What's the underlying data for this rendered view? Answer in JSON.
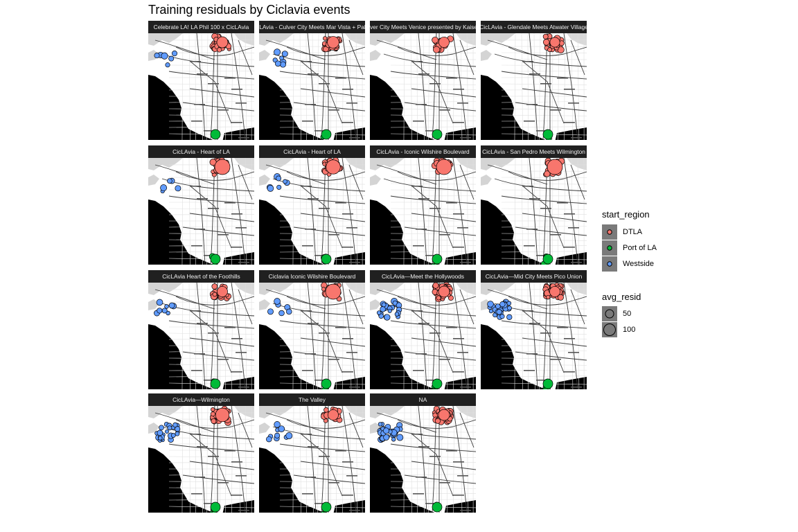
{
  "title": "Training residuals by Ciclavia events",
  "colors": {
    "DTLA": "#F8766D",
    "Port of LA": "#00BA38",
    "Westside": "#619CFF",
    "strip_bg": "#202020",
    "ocean": "#000000",
    "land": "#ffffff",
    "legend_key_bg": "#7a7a7a"
  },
  "facets": [
    {
      "label": "Celebrate LA! LA Phil 100 x CicLAvia",
      "points": {
        "DTLA": 28,
        "Port of LA": 3,
        "Westside": 6
      },
      "max_resid": 55
    },
    {
      "label": "CicLAvia - Culver City Meets Mar Vista + Palms",
      "points": {
        "DTLA": 24,
        "Port of LA": 3,
        "Westside": 9
      },
      "max_resid": 60
    },
    {
      "label": "CicLAvia - Culver City Meets Venice presented by Kaiser Permanente",
      "points": {
        "DTLA": 20,
        "Port of LA": 2,
        "Westside": 0
      },
      "max_resid": 50
    },
    {
      "label": "CicLAvia - Glendale Meets Atwater Village",
      "points": {
        "DTLA": 20,
        "Port of LA": 2,
        "Westside": 0
      },
      "max_resid": 45
    },
    {
      "label": "CicLAvia - Heart of LA",
      "points": {
        "DTLA": 26,
        "Port of LA": 4,
        "Westside": 5
      },
      "max_resid": 100
    },
    {
      "label": "CicLAvia - Heart of LA",
      "points": {
        "DTLA": 24,
        "Port of LA": 3,
        "Westside": 7
      },
      "max_resid": 80
    },
    {
      "label": "CicLAvia - Iconic Wilshire Boulevard",
      "points": {
        "DTLA": 18,
        "Port of LA": 3,
        "Westside": 0
      },
      "max_resid": 110
    },
    {
      "label": "CicLAvia - San Pedro Meets Wilmington",
      "points": {
        "DTLA": 20,
        "Port of LA": 8,
        "Westside": 0
      },
      "max_resid": 90
    },
    {
      "label": "CicLAvia Heart of the Foothills",
      "points": {
        "DTLA": 22,
        "Port of LA": 3,
        "Westside": 8
      },
      "max_resid": 50
    },
    {
      "label": "Ciclavia Iconic Wilshire Boulevard",
      "points": {
        "DTLA": 22,
        "Port of LA": 3,
        "Westside": 6
      },
      "max_resid": 90
    },
    {
      "label": "CicLAvia—Meet the Hollywoods",
      "points": {
        "DTLA": 40,
        "Port of LA": 4,
        "Westside": 24
      },
      "max_resid": 55
    },
    {
      "label": "CicLAvia—Mid City Meets Pico Union",
      "points": {
        "DTLA": 40,
        "Port of LA": 5,
        "Westside": 24
      },
      "max_resid": 50
    },
    {
      "label": "CicLAvia—Wilmington",
      "points": {
        "DTLA": 26,
        "Port of LA": 6,
        "Westside": 22
      },
      "max_resid": 75
    },
    {
      "label": "The Valley",
      "points": {
        "DTLA": 20,
        "Port of LA": 3,
        "Westside": 9
      },
      "max_resid": 50
    },
    {
      "label": "NA",
      "points": {
        "DTLA": 42,
        "Port of LA": 5,
        "Westside": 26
      },
      "max_resid": 55
    }
  ],
  "legend": {
    "color_title": "start_region",
    "color_items": [
      "DTLA",
      "Port of LA",
      "Westside"
    ],
    "size_title": "avg_resid",
    "size_items": [
      "50",
      "100"
    ]
  }
}
